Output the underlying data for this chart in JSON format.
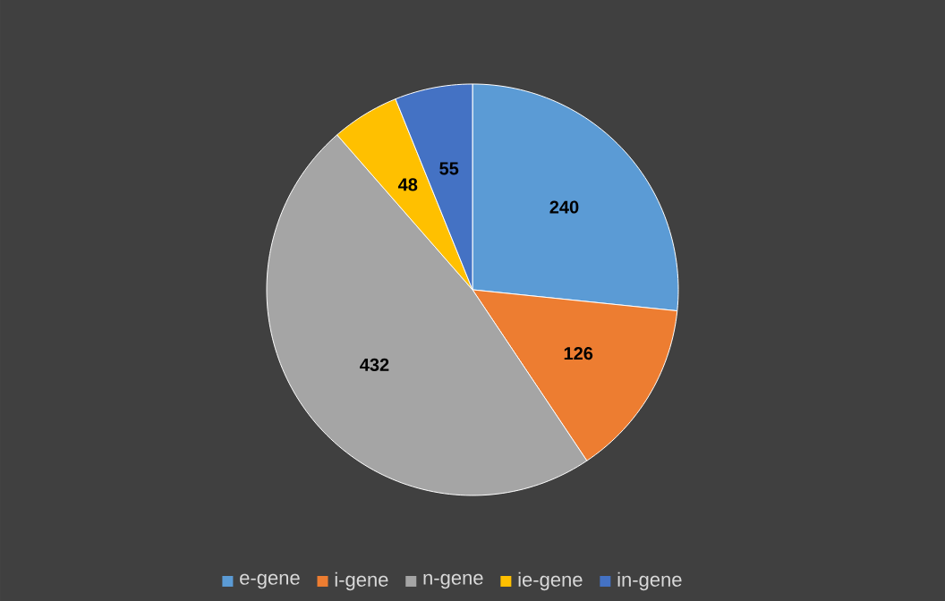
{
  "chart_data": {
    "type": "pie",
    "categories": [
      "e-gene",
      "i-gene",
      "n-gene",
      "ie-gene",
      "in-gene"
    ],
    "values": [
      240,
      126,
      432,
      48,
      55
    ],
    "colors": [
      "#5b9bd5",
      "#ed7d31",
      "#a5a5a5",
      "#ffc000",
      "#4472c4"
    ],
    "data_labels": true,
    "legend": "bottom"
  }
}
